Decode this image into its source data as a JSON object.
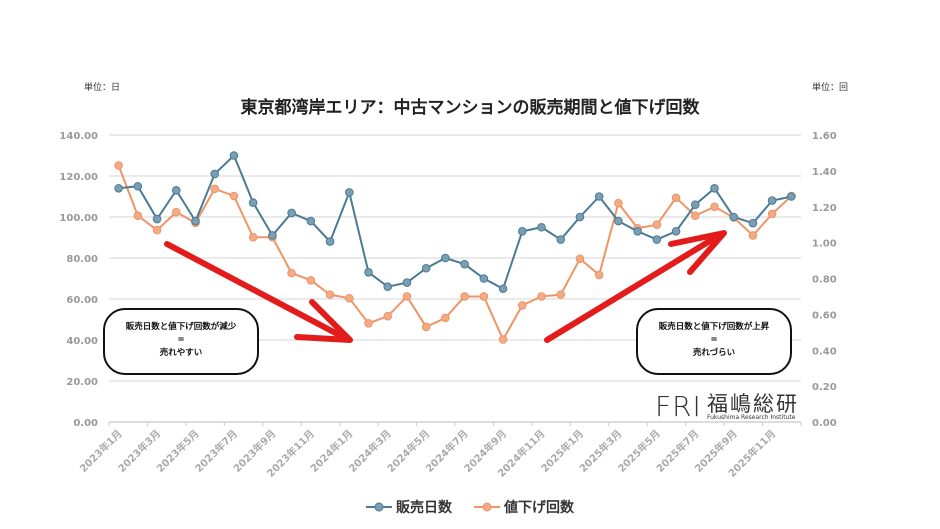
{
  "chart_data": {
    "type": "line",
    "title": "東京都湾岸エリア：中古マンションの販売期間と値下げ回数",
    "left_axis_unit": "単位：日",
    "right_axis_unit": "単位：回",
    "ylim_left": [
      0,
      140
    ],
    "ylim_right": [
      0,
      1.6
    ],
    "left_ticks": [
      "0.00",
      "20.00",
      "40.00",
      "60.00",
      "80.00",
      "100.00",
      "120.00",
      "140.00"
    ],
    "right_ticks": [
      "0.00",
      "0.20",
      "0.40",
      "0.60",
      "0.80",
      "1.00",
      "1.20",
      "1.40",
      "1.60"
    ],
    "grid": true,
    "legend_position": "bottom",
    "x_tick_labels": [
      "2023年1月",
      "2023年3月",
      "2023年5月",
      "2023年7月",
      "2023年9月",
      "2023年11月",
      "2024年1月",
      "2024年3月",
      "2024年5月",
      "2024年7月",
      "2024年9月",
      "2024年11月",
      "2025年1月",
      "2025年3月",
      "2025年5月",
      "2025年7月",
      "2025年9月",
      "2025年11月"
    ],
    "x_start": "2023年1月",
    "x_end": "2025年12月",
    "series": [
      {
        "name": "販売日数",
        "axis": "left",
        "color": "#4a7a96",
        "values": [
          114,
          115,
          99,
          113,
          98,
          121,
          130,
          107,
          91,
          102,
          98,
          88,
          112,
          73,
          66,
          68,
          75,
          80,
          77,
          70,
          65,
          93,
          95,
          89,
          100,
          110,
          98,
          93,
          89,
          93,
          106,
          114,
          100,
          97,
          108,
          110
        ]
      },
      {
        "name": "値下げ回数",
        "axis": "right",
        "color": "#ee9466",
        "values": [
          1.43,
          1.15,
          1.07,
          1.17,
          1.11,
          1.3,
          1.26,
          1.03,
          1.03,
          0.83,
          0.79,
          0.71,
          0.69,
          0.55,
          0.59,
          0.7,
          0.53,
          0.58,
          0.7,
          0.7,
          0.46,
          0.65,
          0.7,
          0.71,
          0.91,
          0.82,
          1.22,
          1.08,
          1.1,
          1.25,
          1.15,
          1.2,
          1.14,
          1.04,
          1.16,
          1.26
        ]
      }
    ],
    "annotations": [
      {
        "lines": [
          "販売日数と値下げ回数が減少",
          "=",
          "売れやすい"
        ],
        "trend": "down"
      },
      {
        "lines": [
          "販売日数と値下げ回数が上昇",
          "=",
          "売れづらい"
        ],
        "trend": "up"
      }
    ],
    "arrow_color": "#e31b1b"
  },
  "logo": {
    "mark": "FRI",
    "name": "福嶋総研",
    "sub": "Fukushima Research Institute"
  }
}
